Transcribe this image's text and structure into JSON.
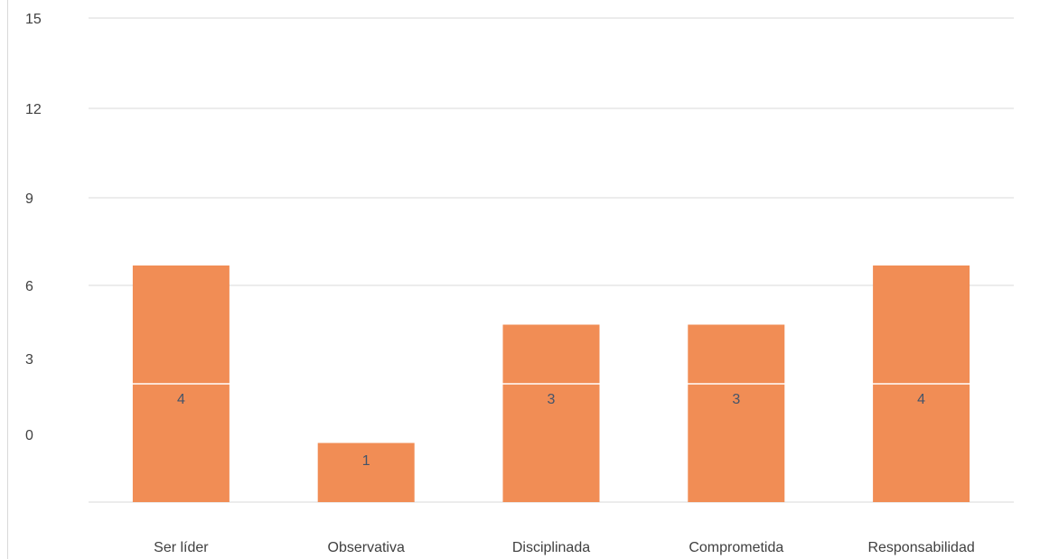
{
  "chart_data": {
    "type": "bar",
    "categories": [
      "Ser líder",
      "Observativa",
      "Disciplinada",
      "Comprometida",
      "Responsabilidad"
    ],
    "values": [
      4,
      1,
      3,
      3,
      4
    ],
    "data_labels": [
      "4",
      "1",
      "3",
      "3",
      "4"
    ],
    "y_tick_labels": [
      "15",
      "12",
      "9",
      "6",
      "3",
      "0"
    ],
    "title": "",
    "xlabel": "",
    "ylabel": "",
    "ylim": [
      0,
      5
    ],
    "grid": true,
    "legend": "none",
    "colors": {
      "bar": "#F18D55",
      "grid": "#d9d9d9",
      "label": "#44546A",
      "axis_text": "#404040"
    }
  }
}
